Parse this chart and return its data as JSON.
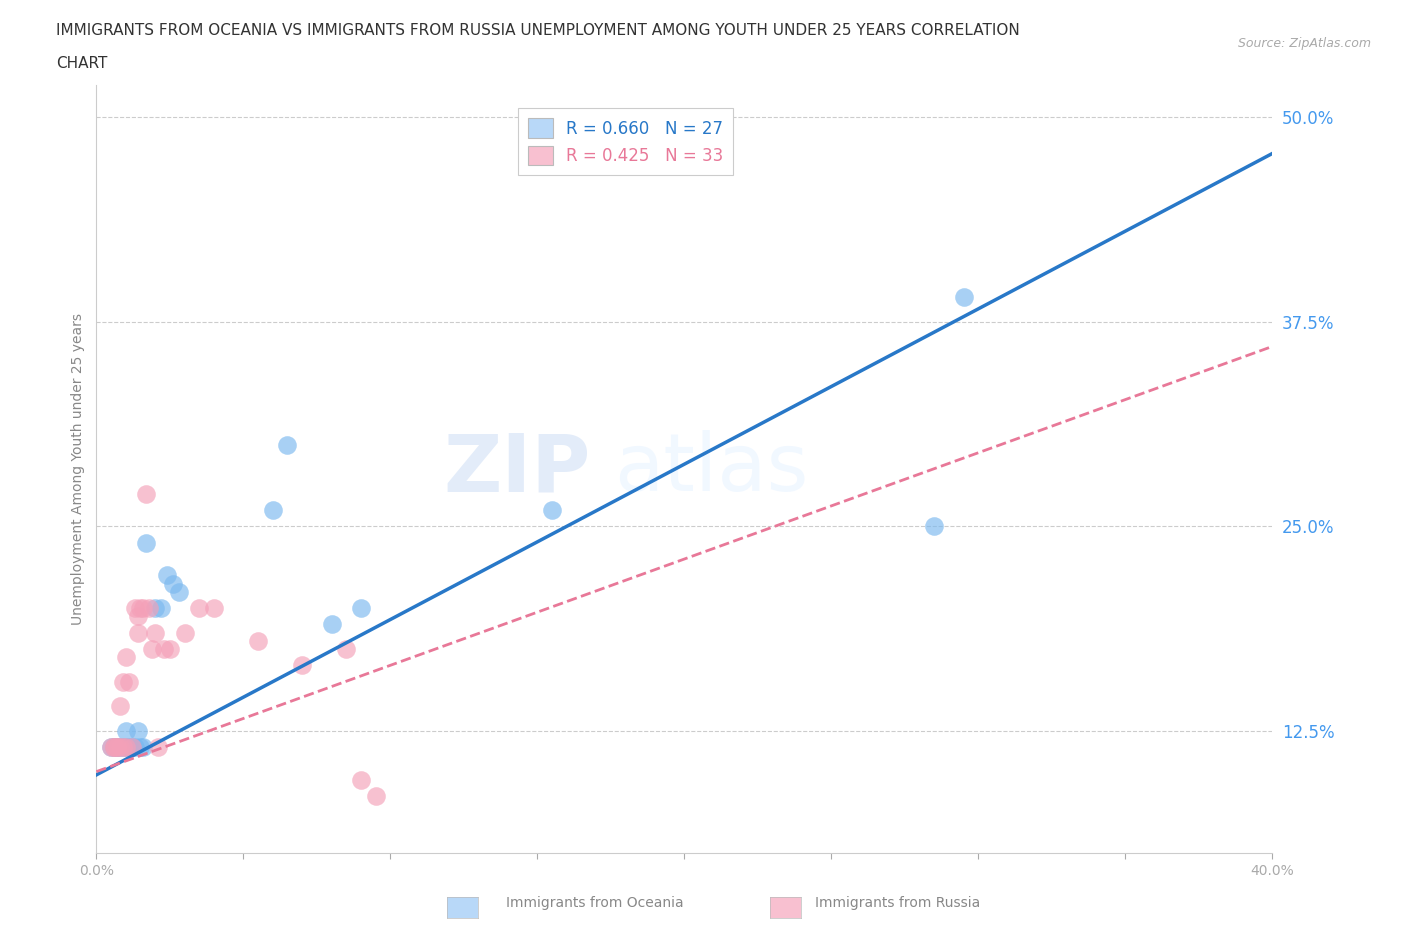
{
  "title_line1": "IMMIGRANTS FROM OCEANIA VS IMMIGRANTS FROM RUSSIA UNEMPLOYMENT AMONG YOUTH UNDER 25 YEARS CORRELATION",
  "title_line2": "CHART",
  "source_text": "Source: ZipAtlas.com",
  "watermark_part1": "ZIP",
  "watermark_part2": "atlas",
  "ylabel": "Unemployment Among Youth under 25 years",
  "xlim": [
    0.0,
    0.4
  ],
  "ylim": [
    0.05,
    0.52
  ],
  "xticks": [
    0.0,
    0.05,
    0.1,
    0.15,
    0.2,
    0.25,
    0.3,
    0.35,
    0.4
  ],
  "xticklabels": [
    "0.0%",
    "",
    "",
    "",
    "",
    "",
    "",
    "",
    "40.0%"
  ],
  "ytick_positions": [
    0.125,
    0.25,
    0.375,
    0.5
  ],
  "ytick_labels": [
    "12.5%",
    "25.0%",
    "37.5%",
    "50.0%"
  ],
  "oceania_R": 0.66,
  "oceania_N": 27,
  "russia_R": 0.425,
  "russia_N": 33,
  "oceania_color": "#7ab8ef",
  "russia_color": "#f4a0b8",
  "oceania_line_color": "#2878c8",
  "russia_line_color": "#e87898",
  "legend_box_oceania": "#b8d8f8",
  "legend_box_russia": "#f8c0d0",
  "background_color": "#ffffff",
  "grid_color": "#cccccc",
  "title_fontsize": 11,
  "axis_label_fontsize": 10,
  "tick_fontsize": 10,
  "right_tick_color": "#4499ee",
  "oceania_scatter_x": [
    0.005,
    0.006,
    0.007,
    0.007,
    0.008,
    0.009,
    0.01,
    0.01,
    0.011,
    0.012,
    0.013,
    0.014,
    0.015,
    0.016,
    0.017,
    0.02,
    0.022,
    0.024,
    0.026,
    0.028,
    0.06,
    0.065,
    0.08,
    0.09,
    0.155,
    0.285,
    0.295
  ],
  "oceania_scatter_y": [
    0.115,
    0.115,
    0.115,
    0.115,
    0.115,
    0.115,
    0.115,
    0.125,
    0.115,
    0.115,
    0.115,
    0.125,
    0.115,
    0.115,
    0.24,
    0.2,
    0.2,
    0.22,
    0.215,
    0.21,
    0.26,
    0.3,
    0.19,
    0.2,
    0.26,
    0.25,
    0.39
  ],
  "russia_scatter_x": [
    0.005,
    0.006,
    0.006,
    0.007,
    0.007,
    0.008,
    0.008,
    0.009,
    0.009,
    0.01,
    0.01,
    0.011,
    0.012,
    0.013,
    0.014,
    0.014,
    0.015,
    0.016,
    0.017,
    0.018,
    0.019,
    0.02,
    0.021,
    0.023,
    0.025,
    0.03,
    0.035,
    0.04,
    0.055,
    0.07,
    0.085,
    0.09,
    0.095
  ],
  "russia_scatter_y": [
    0.115,
    0.115,
    0.115,
    0.115,
    0.115,
    0.115,
    0.14,
    0.115,
    0.155,
    0.115,
    0.17,
    0.155,
    0.115,
    0.2,
    0.185,
    0.195,
    0.2,
    0.2,
    0.27,
    0.2,
    0.175,
    0.185,
    0.115,
    0.175,
    0.175,
    0.185,
    0.2,
    0.2,
    0.18,
    0.165,
    0.175,
    0.095,
    0.085
  ]
}
